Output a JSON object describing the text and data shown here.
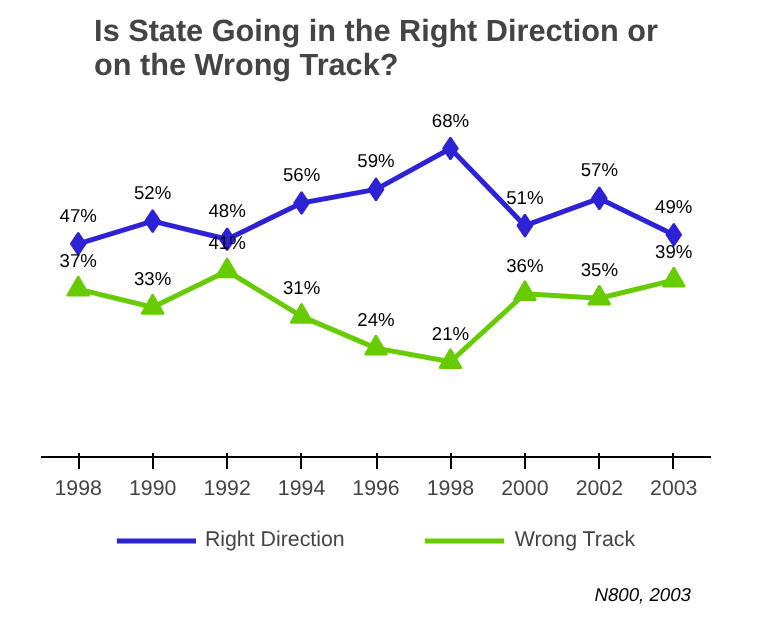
{
  "chart_data": {
    "type": "line",
    "title": "Is State Going in the Right Direction or on the Wrong Track?",
    "categories": [
      "1998",
      "1990",
      "1992",
      "1994",
      "1996",
      "1998",
      "2000",
      "2002",
      "2003"
    ],
    "series": [
      {
        "name": "Right Direction",
        "color": "#2d22d6",
        "marker": "diamond",
        "values": [
          47,
          52,
          48,
          56,
          59,
          68,
          51,
          57,
          49
        ],
        "value_labels": [
          "47%",
          "52%",
          "48%",
          "56%",
          "59%",
          "68%",
          "51%",
          "57%",
          "49%"
        ]
      },
      {
        "name": "Wrong Track",
        "color": "#66cc00",
        "marker": "triangle",
        "values": [
          37,
          33,
          41,
          31,
          24,
          21,
          36,
          35,
          39
        ],
        "value_labels": [
          "37%",
          "33%",
          "41%",
          "31%",
          "24%",
          "21%",
          "36%",
          "35%",
          "39%"
        ]
      }
    ],
    "legend": "bottom",
    "grid": false,
    "tick_labels": "x",
    "annotations": [
      "N800, 2003"
    ]
  }
}
